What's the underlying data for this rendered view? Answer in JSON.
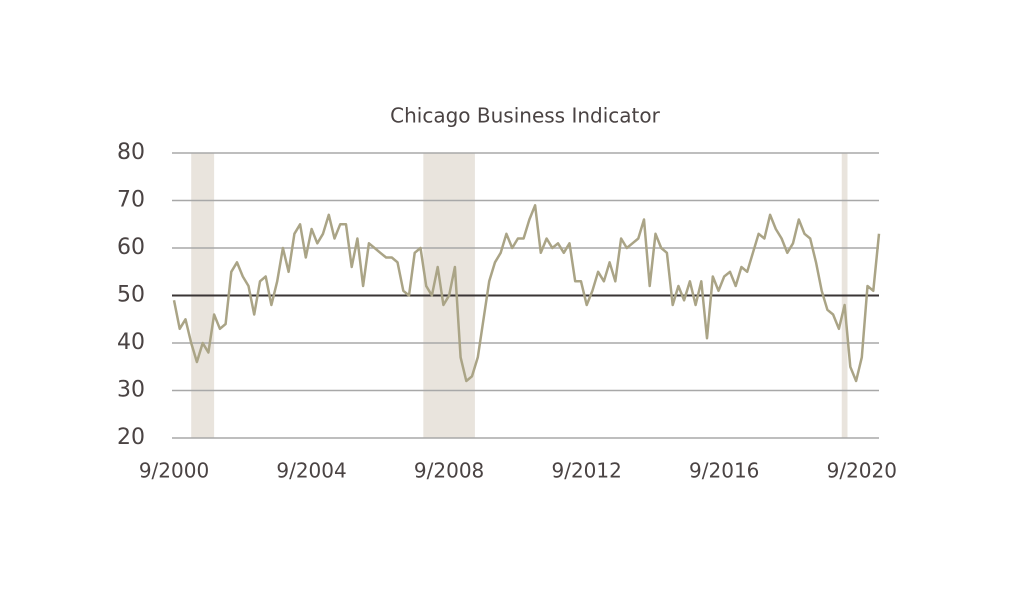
{
  "chart_data": {
    "type": "line",
    "title": "Chicago Business Indicator",
    "x": [
      "9/2000",
      "11/2000",
      "1/2001",
      "3/2001",
      "5/2001",
      "7/2001",
      "9/2001",
      "11/2001",
      "1/2002",
      "3/2002",
      "5/2002",
      "7/2002",
      "9/2002",
      "11/2002",
      "1/2003",
      "3/2003",
      "5/2003",
      "7/2003",
      "9/2003",
      "11/2003",
      "1/2004",
      "3/2004",
      "5/2004",
      "7/2004",
      "9/2004",
      "11/2004",
      "1/2005",
      "3/2005",
      "5/2005",
      "7/2005",
      "9/2005",
      "11/2005",
      "1/2006",
      "3/2006",
      "5/2006",
      "7/2006",
      "9/2006",
      "11/2006",
      "1/2007",
      "3/2007",
      "5/2007",
      "7/2007",
      "9/2007",
      "11/2007",
      "1/2008",
      "3/2008",
      "5/2008",
      "7/2008",
      "9/2008",
      "11/2008",
      "1/2009",
      "3/2009",
      "5/2009",
      "7/2009",
      "9/2009",
      "11/2009",
      "1/2010",
      "3/2010",
      "5/2010",
      "7/2010",
      "9/2010",
      "11/2010",
      "1/2011",
      "3/2011",
      "5/2011",
      "7/2011",
      "9/2011",
      "11/2011",
      "1/2012",
      "3/2012",
      "5/2012",
      "7/2012",
      "9/2012",
      "11/2012",
      "1/2013",
      "3/2013",
      "5/2013",
      "7/2013",
      "9/2013",
      "11/2013",
      "1/2014",
      "3/2014",
      "5/2014",
      "7/2014",
      "9/2014",
      "11/2014",
      "1/2015",
      "3/2015",
      "5/2015",
      "7/2015",
      "9/2015",
      "11/2015",
      "1/2016",
      "3/2016",
      "5/2016",
      "7/2016",
      "9/2016",
      "11/2016",
      "1/2017",
      "3/2017",
      "5/2017",
      "7/2017",
      "9/2017",
      "11/2017",
      "1/2018",
      "3/2018",
      "5/2018",
      "7/2018",
      "9/2018",
      "11/2018",
      "1/2019",
      "3/2019",
      "5/2019",
      "7/2019",
      "9/2019",
      "11/2019",
      "1/2020",
      "3/2020",
      "5/2020",
      "7/2020",
      "9/2020",
      "11/2020",
      "1/2021",
      "3/2021"
    ],
    "series": [
      {
        "color": "#aaa486",
        "values": [
          49,
          43,
          45,
          40,
          36,
          40,
          38,
          46,
          43,
          44,
          55,
          57,
          54,
          52,
          46,
          53,
          54,
          48,
          53,
          60,
          55,
          63,
          65,
          58,
          64,
          61,
          63,
          67,
          62,
          65,
          65,
          56,
          62,
          52,
          61,
          60,
          59,
          58,
          58,
          57,
          51,
          50,
          59,
          60,
          52,
          50,
          56,
          48,
          50,
          56,
          37,
          32,
          33,
          37,
          45,
          53,
          57,
          59,
          63,
          60,
          62,
          62,
          66,
          69,
          59,
          62,
          60,
          61,
          59,
          61,
          53,
          53,
          48,
          51,
          55,
          53,
          57,
          53,
          62,
          60,
          61,
          62,
          66,
          52,
          63,
          60,
          59,
          48,
          52,
          49,
          53,
          48,
          53,
          41,
          54,
          51,
          54,
          55,
          52,
          56,
          55,
          59,
          63,
          62,
          67,
          64,
          62,
          59,
          61,
          66,
          63,
          62,
          57,
          51,
          47,
          46,
          43,
          48,
          35,
          32,
          37,
          52,
          51,
          63
        ]
      }
    ],
    "recessions": [
      {
        "start": "3/2001",
        "end": "11/2001"
      },
      {
        "start": "12/2007",
        "end": "6/2009"
      },
      {
        "start": "2/2020",
        "end": "4/2020"
      }
    ],
    "xticks": [
      "9/2000",
      "9/2004",
      "9/2008",
      "9/2012",
      "9/2016",
      "9/2020"
    ],
    "xlim": [
      "9/2000",
      "3/2021"
    ],
    "ylim": [
      20,
      80
    ],
    "yticks": [
      20,
      30,
      40,
      50,
      60,
      70,
      80
    ],
    "grid": true,
    "reference_line": 50
  }
}
